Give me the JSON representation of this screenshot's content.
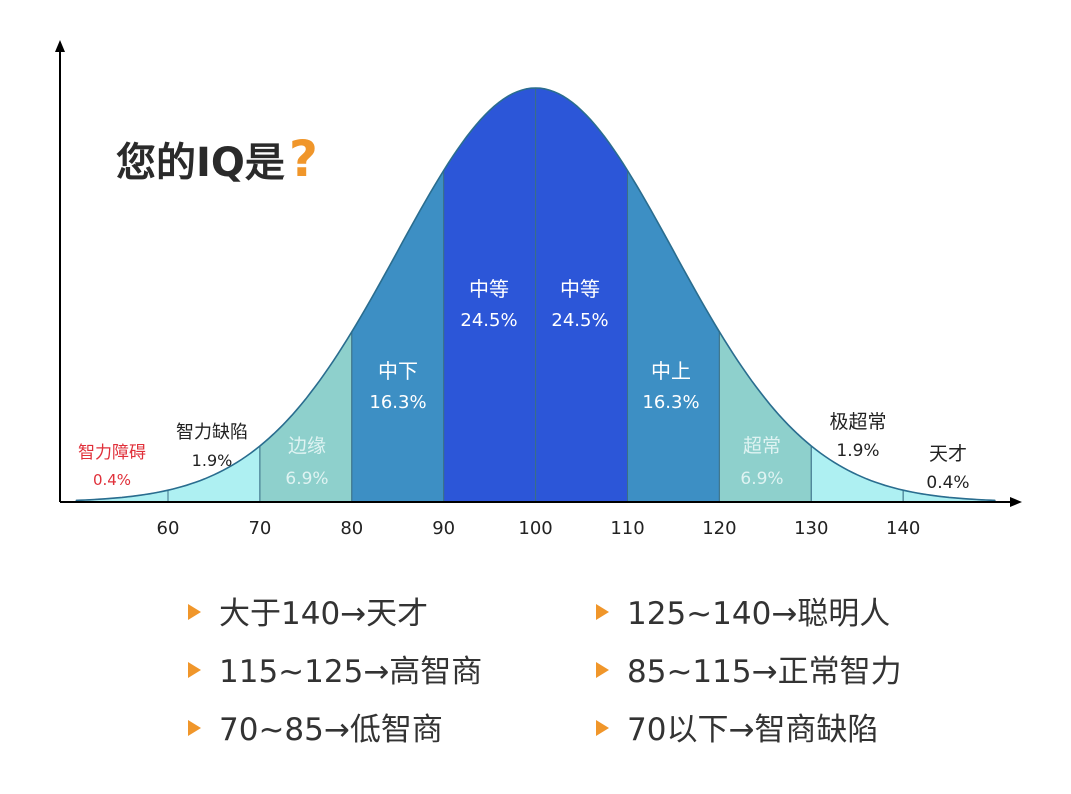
{
  "title": {
    "text": "您的IQ是",
    "mark": "?"
  },
  "colors": {
    "band_outer": "#aef0f2",
    "band_edge": "#8ed0cc",
    "band_low": "#3d8fc4",
    "band_mid": "#2c56d8",
    "curve": "#2a6d8f",
    "axis": "#000000",
    "disability_label": "#e0303a",
    "accent": "#f0962a"
  },
  "chart_data": {
    "type": "area",
    "title": "您的IQ是?",
    "xlabel": "",
    "ylabel": "",
    "x_ticks": [
      60,
      70,
      80,
      90,
      100,
      110,
      120,
      130,
      140
    ],
    "xlim": [
      50,
      150
    ],
    "distribution": {
      "kind": "normal",
      "mean": 100,
      "sd": 15
    },
    "bands": [
      {
        "label": "智力障碍",
        "percent": "0.4%",
        "from": 50,
        "to": 60
      },
      {
        "label": "智力缺陷",
        "percent": "1.9%",
        "from": 60,
        "to": 70
      },
      {
        "label": "边缘",
        "percent": "6.9%",
        "from": 70,
        "to": 80
      },
      {
        "label": "中下",
        "percent": "16.3%",
        "from": 80,
        "to": 90
      },
      {
        "label": "中等",
        "percent": "24.5%",
        "from": 90,
        "to": 100
      },
      {
        "label": "中等",
        "percent": "24.5%",
        "from": 100,
        "to": 110
      },
      {
        "label": "中上",
        "percent": "16.3%",
        "from": 110,
        "to": 120
      },
      {
        "label": "超常",
        "percent": "6.9%",
        "from": 120,
        "to": 130
      },
      {
        "label": "极超常",
        "percent": "1.9%",
        "from": 130,
        "to": 140
      },
      {
        "label": "天才",
        "percent": "0.4%",
        "from": 140,
        "to": 150
      }
    ]
  },
  "legend": {
    "left": [
      "大于140→天才",
      "115~125→高智商",
      "70~85→低智商"
    ],
    "right": [
      "125~140→聪明人",
      "85~115→正常智力",
      "70以下→智商缺陷"
    ]
  }
}
